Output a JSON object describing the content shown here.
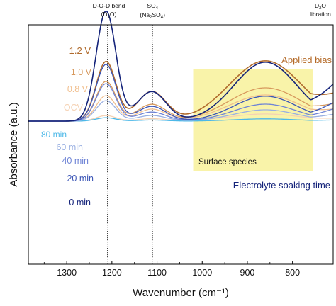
{
  "chart_data": {
    "type": "line",
    "xlabel": "Wavenumber (cm⁻¹)",
    "ylabel": "Absorbance (a.u.)",
    "xlim": [
      1385,
      710
    ],
    "xdir": "reversed",
    "ylim": [
      -1.0,
      1.0
    ],
    "xticks": [
      1300,
      1200,
      1100,
      1000,
      900,
      800
    ],
    "yticks": "none",
    "grid": false,
    "reference_lines": [
      {
        "x": 1210,
        "style": "dotted",
        "label_main": "D-O-D bend",
        "label_sub_pre": "(D",
        "label_sub_idx": "2",
        "label_sub_post": "O)"
      },
      {
        "x": 1110,
        "style": "dotted",
        "label_main_pre": "SO",
        "label_main_idx": "4",
        "label_sub_pre": "(Na",
        "label_sub_idx1": "2",
        "label_sub_mid": "SO",
        "label_sub_idx2": "4",
        "label_sub_post": ")"
      }
    ],
    "corner_label": {
      "pre": "D",
      "idx": "2",
      "post": "O",
      "sub": "libration"
    },
    "highlight": {
      "x_range": [
        1020,
        755
      ],
      "color": "#f9f3a9",
      "label": "Surface species"
    },
    "group_labels": [
      {
        "text": "Applied bias",
        "color": "#b46a28"
      },
      {
        "text": "Electrolyte soaking time",
        "color": "#14237a"
      }
    ],
    "series": [
      {
        "name": "1.2 V",
        "color": "#b06a2c",
        "group": "bias",
        "peaks": [
          1213,
          0.75,
          22,
          1112,
          0.37,
          32,
          860,
          0.76,
          80
        ]
      },
      {
        "name": "1.0 V",
        "color": "#d7995d",
        "group": "bias",
        "peaks": [
          1213,
          0.5,
          22,
          1112,
          0.21,
          32,
          860,
          0.42,
          80
        ]
      },
      {
        "name": "0.8 V",
        "color": "#f1bf8e",
        "group": "bias",
        "peaks": [
          1213,
          0.32,
          22,
          1112,
          0.15,
          32,
          860,
          0.33,
          80
        ]
      },
      {
        "name": "OCV",
        "color": "#f5d2b4",
        "group": "bias",
        "peaks": [
          1213,
          0.07,
          22,
          1112,
          0.03,
          32,
          860,
          0.09,
          80
        ]
      },
      {
        "name": "80 min",
        "color": "#4cb8e8",
        "group": "soak",
        "peaks": [
          1213,
          -0.03,
          22,
          1112,
          -0.01,
          32,
          860,
          -0.02,
          70
        ]
      },
      {
        "name": "60 min",
        "color": "#9ab0e2",
        "group": "soak",
        "peaks": [
          1213,
          -0.18,
          22,
          1112,
          -0.05,
          32,
          860,
          -0.1,
          70
        ]
      },
      {
        "name": "40 min",
        "color": "#6f84d6",
        "group": "soak",
        "peaks": [
          1213,
          -0.33,
          22,
          1112,
          -0.08,
          32,
          860,
          -0.15,
          70
        ]
      },
      {
        "name": "20 min",
        "color": "#3b55b6",
        "group": "soak",
        "peaks": [
          1213,
          -0.5,
          22,
          1112,
          -0.13,
          32,
          860,
          -0.22,
          70
        ]
      },
      {
        "name": "0 min",
        "color": "#14237a",
        "group": "soak",
        "peaks": [
          1213,
          -0.97,
          22,
          1112,
          -0.26,
          32,
          860,
          -0.52,
          70
        ]
      }
    ]
  }
}
